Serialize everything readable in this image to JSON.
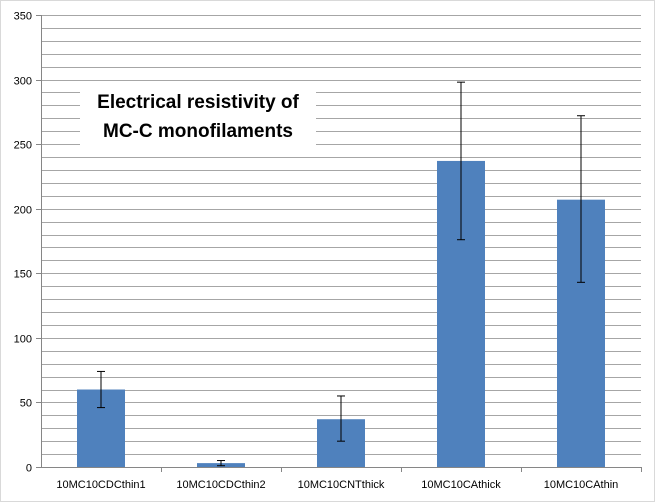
{
  "chart_data": {
    "type": "bar",
    "title": "Electrical resistivity of MC-C monofilaments",
    "title_lines": [
      "Electrical resistivity of",
      "MC-C monofilaments"
    ],
    "categories": [
      "10MC10CDCthin1",
      "10MC10CDCthin2",
      "10MC10CNTthick",
      "10MC10CAthick",
      "10MC10CAthin"
    ],
    "values": [
      60,
      3,
      37,
      237,
      207
    ],
    "error_low": [
      46,
      1,
      20,
      176,
      143
    ],
    "error_high": [
      74,
      5,
      55,
      298,
      272
    ],
    "ylim": [
      0,
      350
    ],
    "yticks": [
      0,
      50,
      100,
      150,
      200,
      250,
      300,
      350
    ],
    "ytick_labels": [
      "0",
      "50",
      "100",
      "150",
      "200",
      "250",
      "300",
      "350"
    ],
    "xlabel": "",
    "ylabel": "",
    "grid": true,
    "bar_color": "#4f81bd",
    "grid_color": "#a6a6a6",
    "axis_color": "#868686"
  }
}
